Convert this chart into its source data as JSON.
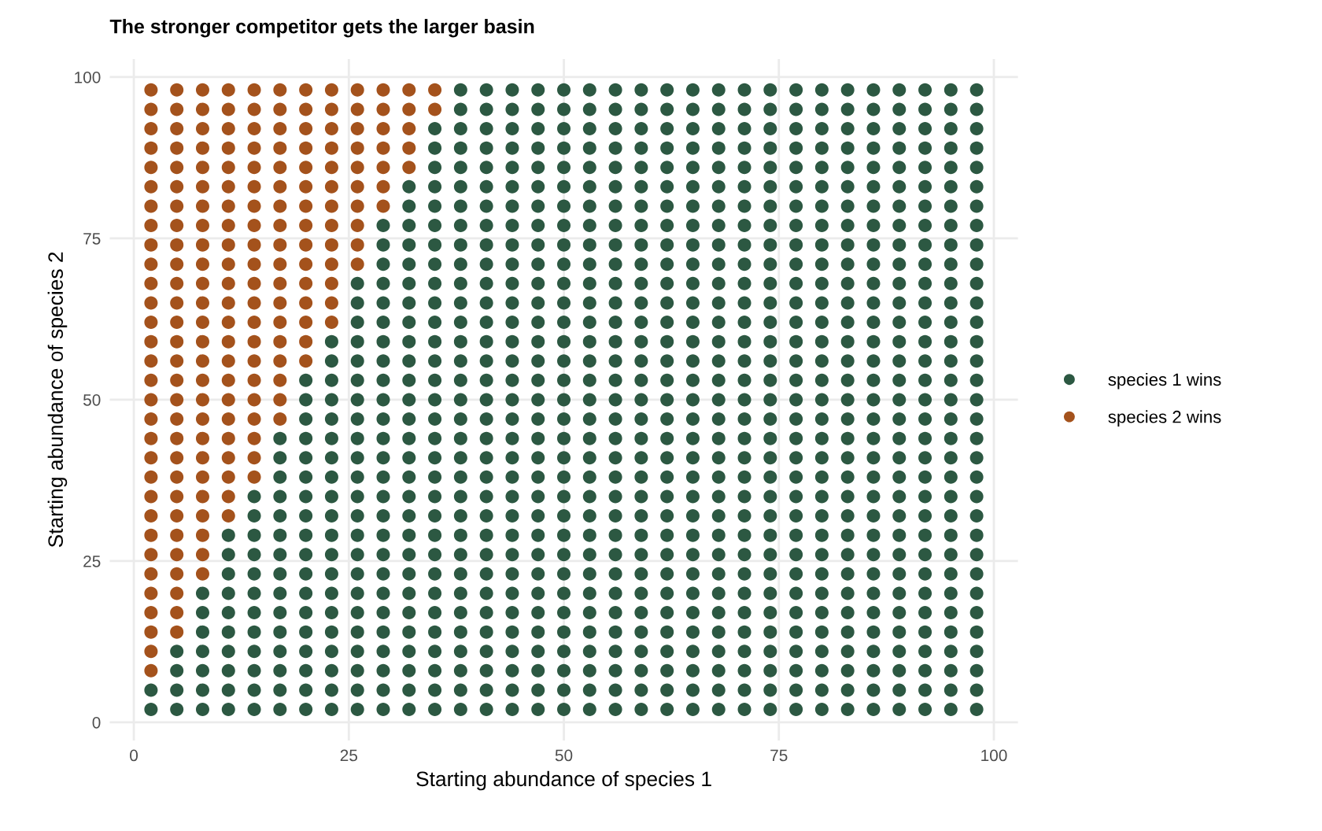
{
  "chart_data": {
    "type": "scatter",
    "title": "The stronger competitor gets the larger basin",
    "xlabel": "Starting abundance of species 1",
    "ylabel": "Starting abundance of species 2",
    "xlim": [
      -2.8,
      102.8
    ],
    "xticks": [
      0,
      25,
      50,
      75,
      100
    ],
    "ylim": [
      -2.8,
      102.8
    ],
    "yticks": [
      0,
      25,
      50,
      75,
      100
    ],
    "grid": true,
    "legend": "right",
    "marker": "circle",
    "series": [
      {
        "name": "species 1 wins",
        "color": "#2c5842",
        "x": [
          2,
          2,
          5,
          5,
          5,
          5,
          8,
          8,
          8,
          8,
          8,
          8,
          8,
          11,
          11,
          11,
          11,
          11,
          11,
          11,
          11,
          11,
          11,
          14,
          14,
          14,
          14,
          14,
          14,
          14,
          14,
          14,
          14,
          14,
          14,
          17,
          17,
          17,
          17,
          17,
          17,
          17,
          17,
          17,
          17,
          17,
          17,
          17,
          17,
          17,
          20,
          20,
          20,
          20,
          20,
          20,
          20,
          20,
          20,
          20,
          20,
          20,
          20,
          20,
          20,
          20,
          20,
          20,
          23,
          23,
          23,
          23,
          23,
          23,
          23,
          23,
          23,
          23,
          23,
          23,
          23,
          23,
          23,
          23,
          23,
          23,
          23,
          23,
          26,
          26,
          26,
          26,
          26,
          26,
          26,
          26,
          26,
          26,
          26,
          26,
          26,
          26,
          26,
          26,
          26,
          26,
          26,
          26,
          26,
          26,
          26,
          29,
          29,
          29,
          29,
          29,
          29,
          29,
          29,
          29,
          29,
          29,
          29,
          29,
          29,
          29,
          29,
          29,
          29,
          29,
          29,
          29,
          29,
          29,
          29,
          29,
          29,
          32,
          32,
          32,
          32,
          32,
          32,
          32,
          32,
          32,
          32,
          32,
          32,
          32,
          32,
          32,
          32,
          32,
          32,
          32,
          32,
          32,
          32,
          32,
          32,
          32,
          32,
          32,
          32,
          35,
          35,
          35,
          35,
          35,
          35,
          35,
          35,
          35,
          35,
          35,
          35,
          35,
          35,
          35,
          35,
          35,
          35,
          35,
          35,
          35,
          35,
          35,
          35,
          35,
          35,
          35,
          35,
          35,
          35,
          35,
          38,
          38,
          38,
          38,
          38,
          38,
          38,
          38,
          38,
          38,
          38,
          38,
          38,
          38,
          38,
          38,
          38,
          38,
          38,
          38,
          38,
          38,
          38,
          38,
          38,
          38,
          38,
          38,
          38,
          38,
          38,
          38,
          38,
          41,
          41,
          41,
          41,
          41,
          41,
          41,
          41,
          41,
          41,
          41,
          41,
          41,
          41,
          41,
          41,
          41,
          41,
          41,
          41,
          41,
          41,
          41,
          41,
          41,
          41,
          41,
          41,
          41,
          41,
          41,
          41,
          41,
          44,
          44,
          44,
          44,
          44,
          44,
          44,
          44,
          44,
          44,
          44,
          44,
          44,
          44,
          44,
          44,
          44,
          44,
          44,
          44,
          44,
          44,
          44,
          44,
          44,
          44,
          44,
          44,
          44,
          44,
          44,
          44,
          44,
          47,
          47,
          47,
          47,
          47,
          47,
          47,
          47,
          47,
          47,
          47,
          47,
          47,
          47,
          47,
          47,
          47,
          47,
          47,
          47,
          47,
          47,
          47,
          47,
          47,
          47,
          47,
          47,
          47,
          47,
          47,
          47,
          47,
          50,
          50,
          50,
          50,
          50,
          50,
          50,
          50,
          50,
          50,
          50,
          50,
          50,
          50,
          50,
          50,
          50,
          50,
          50,
          50,
          50,
          50,
          50,
          50,
          50,
          50,
          50,
          50,
          50,
          50,
          50,
          50,
          50,
          53,
          53,
          53,
          53,
          53,
          53,
          53,
          53,
          53,
          53,
          53,
          53,
          53,
          53,
          53,
          53,
          53,
          53,
          53,
          53,
          53,
          53,
          53,
          53,
          53,
          53,
          53,
          53,
          53,
          53,
          53,
          53,
          53,
          56,
          56,
          56,
          56,
          56,
          56,
          56,
          56,
          56,
          56,
          56,
          56,
          56,
          56,
          56,
          56,
          56,
          56,
          56,
          56,
          56,
          56,
          56,
          56,
          56,
          56,
          56,
          56,
          56,
          56,
          56,
          56,
          56,
          59,
          59,
          59,
          59,
          59,
          59,
          59,
          59,
          59,
          59,
          59,
          59,
          59,
          59,
          59,
          59,
          59,
          59,
          59,
          59,
          59,
          59,
          59,
          59,
          59,
          59,
          59,
          59,
          59,
          59,
          59,
          59,
          59,
          62,
          62,
          62,
          62,
          62,
          62,
          62,
          62,
          62,
          62,
          62,
          62,
          62,
          62,
          62,
          62,
          62,
          62,
          62,
          62,
          62,
          62,
          62,
          62,
          62,
          62,
          62,
          62,
          62,
          62,
          62,
          62,
          62,
          65,
          65,
          65,
          65,
          65,
          65,
          65,
          65,
          65,
          65,
          65,
          65,
          65,
          65,
          65,
          65,
          65,
          65,
          65,
          65,
          65,
          65,
          65,
          65,
          65,
          65,
          65,
          65,
          65,
          65,
          65,
          65,
          65,
          68,
          68,
          68,
          68,
          68,
          68,
          68,
          68,
          68,
          68,
          68,
          68,
          68,
          68,
          68,
          68,
          68,
          68,
          68,
          68,
          68,
          68,
          68,
          68,
          68,
          68,
          68,
          68,
          68,
          68,
          68,
          68,
          68,
          71,
          71,
          71,
          71,
          71,
          71,
          71,
          71,
          71,
          71,
          71,
          71,
          71,
          71,
          71,
          71,
          71,
          71,
          71,
          71,
          71,
          71,
          71,
          71,
          71,
          71,
          71,
          71,
          71,
          71,
          71,
          71,
          71,
          74,
          74,
          74,
          74,
          74,
          74,
          74,
          74,
          74,
          74,
          74,
          74,
          74,
          74,
          74,
          74,
          74,
          74,
          74,
          74,
          74,
          74,
          74,
          74,
          74,
          74,
          74,
          74,
          74,
          74,
          74,
          74,
          74,
          77,
          77,
          77,
          77,
          77,
          77,
          77,
          77,
          77,
          77,
          77,
          77,
          77,
          77,
          77,
          77,
          77,
          77,
          77,
          77,
          77,
          77,
          77,
          77,
          77,
          77,
          77,
          77,
          77,
          77,
          77,
          77,
          77,
          80,
          80,
          80,
          80,
          80,
          80,
          80,
          80,
          80,
          80,
          80,
          80,
          80,
          80,
          80,
          80,
          80,
          80,
          80,
          80,
          80,
          80,
          80,
          80,
          80,
          80,
          80,
          80,
          80,
          80,
          80,
          80,
          80,
          83,
          83,
          83,
          83,
          83,
          83,
          83,
          83,
          83,
          83,
          83,
          83,
          83,
          83,
          83,
          83,
          83,
          83,
          83,
          83,
          83,
          83,
          83,
          83,
          83,
          83,
          83,
          83,
          83,
          83,
          83,
          83,
          83,
          86,
          86,
          86,
          86,
          86,
          86,
          86,
          86,
          86,
          86,
          86,
          86,
          86,
          86,
          86,
          86,
          86,
          86,
          86,
          86,
          86,
          86,
          86,
          86,
          86,
          86,
          86,
          86,
          86,
          86,
          86,
          86,
          86,
          89,
          89,
          89,
          89,
          89,
          89,
          89,
          89,
          89,
          89,
          89,
          89,
          89,
          89,
          89,
          89,
          89,
          89,
          89,
          89,
          89,
          89,
          89,
          89,
          89,
          89,
          89,
          89,
          89,
          89,
          89,
          89,
          89,
          92,
          92,
          92,
          92,
          92,
          92,
          92,
          92,
          92,
          92,
          92,
          92,
          92,
          92,
          92,
          92,
          92,
          92,
          92,
          92,
          92,
          92,
          92,
          92,
          92,
          92,
          92,
          92,
          92,
          92,
          92,
          92,
          92,
          95,
          95,
          95,
          95,
          95,
          95,
          95,
          95,
          95,
          95,
          95,
          95,
          95,
          95,
          95,
          95,
          95,
          95,
          95,
          95,
          95,
          95,
          95,
          95,
          95,
          95,
          95,
          95,
          95,
          95,
          95,
          95,
          95,
          98,
          98,
          98,
          98,
          98,
          98,
          98,
          98,
          98,
          98,
          98,
          98,
          98,
          98,
          98,
          98,
          98,
          98,
          98,
          98,
          98,
          98,
          98,
          98,
          98,
          98,
          98,
          98,
          98,
          98,
          98,
          98,
          98
        ],
        "values": [
          2,
          5,
          2,
          5,
          8,
          11,
          2,
          5,
          8,
          11,
          14,
          17,
          20,
          2,
          5,
          8,
          11,
          14,
          17,
          20,
          23,
          26,
          29,
          2,
          5,
          8,
          11,
          14,
          17,
          20,
          23,
          26,
          29,
          32,
          35,
          2,
          5,
          8,
          11,
          14,
          17,
          20,
          23,
          26,
          29,
          32,
          35,
          38,
          41,
          44,
          2,
          5,
          8,
          11,
          14,
          17,
          20,
          23,
          26,
          29,
          32,
          35,
          38,
          41,
          44,
          47,
          50,
          53,
          2,
          5,
          8,
          11,
          14,
          17,
          20,
          23,
          26,
          29,
          32,
          35,
          38,
          41,
          44,
          47,
          50,
          53,
          56,
          59,
          2,
          5,
          8,
          11,
          14,
          17,
          20,
          23,
          26,
          29,
          32,
          35,
          38,
          41,
          44,
          47,
          50,
          53,
          56,
          59,
          62,
          65,
          68,
          2,
          5,
          8,
          11,
          14,
          17,
          20,
          23,
          26,
          29,
          32,
          35,
          38,
          41,
          44,
          47,
          50,
          53,
          56,
          59,
          62,
          65,
          68,
          71,
          74,
          77,
          2,
          5,
          8,
          11,
          14,
          17,
          20,
          23,
          26,
          29,
          32,
          35,
          38,
          41,
          44,
          47,
          50,
          53,
          56,
          59,
          62,
          65,
          68,
          71,
          74,
          77,
          80,
          83,
          2,
          5,
          8,
          11,
          14,
          17,
          20,
          23,
          26,
          29,
          32,
          35,
          38,
          41,
          44,
          47,
          50,
          53,
          56,
          59,
          62,
          65,
          68,
          71,
          74,
          77,
          80,
          83,
          86,
          89,
          92,
          2,
          5,
          8,
          11,
          14,
          17,
          20,
          23,
          26,
          29,
          32,
          35,
          38,
          41,
          44,
          47,
          50,
          53,
          56,
          59,
          62,
          65,
          68,
          71,
          74,
          77,
          80,
          83,
          86,
          89,
          92,
          95,
          98,
          2,
          5,
          8,
          11,
          14,
          17,
          20,
          23,
          26,
          29,
          32,
          35,
          38,
          41,
          44,
          47,
          50,
          53,
          56,
          59,
          62,
          65,
          68,
          71,
          74,
          77,
          80,
          83,
          86,
          89,
          92,
          95,
          98,
          2,
          5,
          8,
          11,
          14,
          17,
          20,
          23,
          26,
          29,
          32,
          35,
          38,
          41,
          44,
          47,
          50,
          53,
          56,
          59,
          62,
          65,
          68,
          71,
          74,
          77,
          80,
          83,
          86,
          89,
          92,
          95,
          98,
          2,
          5,
          8,
          11,
          14,
          17,
          20,
          23,
          26,
          29,
          32,
          35,
          38,
          41,
          44,
          47,
          50,
          53,
          56,
          59,
          62,
          65,
          68,
          71,
          74,
          77,
          80,
          83,
          86,
          89,
          92,
          95,
          98,
          2,
          5,
          8,
          11,
          14,
          17,
          20,
          23,
          26,
          29,
          32,
          35,
          38,
          41,
          44,
          47,
          50,
          53,
          56,
          59,
          62,
          65,
          68,
          71,
          74,
          77,
          80,
          83,
          86,
          89,
          92,
          95,
          98,
          2,
          5,
          8,
          11,
          14,
          17,
          20,
          23,
          26,
          29,
          32,
          35,
          38,
          41,
          44,
          47,
          50,
          53,
          56,
          59,
          62,
          65,
          68,
          71,
          74,
          77,
          80,
          83,
          86,
          89,
          92,
          95,
          98,
          2,
          5,
          8,
          11,
          14,
          17,
          20,
          23,
          26,
          29,
          32,
          35,
          38,
          41,
          44,
          47,
          50,
          53,
          56,
          59,
          62,
          65,
          68,
          71,
          74,
          77,
          80,
          83,
          86,
          89,
          92,
          95,
          98,
          2,
          5,
          8,
          11,
          14,
          17,
          20,
          23,
          26,
          29,
          32,
          35,
          38,
          41,
          44,
          47,
          50,
          53,
          56,
          59,
          62,
          65,
          68,
          71,
          74,
          77,
          80,
          83,
          86,
          89,
          92,
          95,
          98,
          2,
          5,
          8,
          11,
          14,
          17,
          20,
          23,
          26,
          29,
          32,
          35,
          38,
          41,
          44,
          47,
          50,
          53,
          56,
          59,
          62,
          65,
          68,
          71,
          74,
          77,
          80,
          83,
          86,
          89,
          92,
          95,
          98,
          2,
          5,
          8,
          11,
          14,
          17,
          20,
          23,
          26,
          29,
          32,
          35,
          38,
          41,
          44,
          47,
          50,
          53,
          56,
          59,
          62,
          65,
          68,
          71,
          74,
          77,
          80,
          83,
          86,
          89,
          92,
          95,
          98,
          2,
          5,
          8,
          11,
          14,
          17,
          20,
          23,
          26,
          29,
          32,
          35,
          38,
          41,
          44,
          47,
          50,
          53,
          56,
          59,
          62,
          65,
          68,
          71,
          74,
          77,
          80,
          83,
          86,
          89,
          92,
          95,
          98,
          2,
          5,
          8,
          11,
          14,
          17,
          20,
          23,
          26,
          29,
          32,
          35,
          38,
          41,
          44,
          47,
          50,
          53,
          56,
          59,
          62,
          65,
          68,
          71,
          74,
          77,
          80,
          83,
          86,
          89,
          92,
          95,
          98,
          2,
          5,
          8,
          11,
          14,
          17,
          20,
          23,
          26,
          29,
          32,
          35,
          38,
          41,
          44,
          47,
          50,
          53,
          56,
          59,
          62,
          65,
          68,
          71,
          74,
          77,
          80,
          83,
          86,
          89,
          92,
          95,
          98,
          2,
          5,
          8,
          11,
          14,
          17,
          20,
          23,
          26,
          29,
          32,
          35,
          38,
          41,
          44,
          47,
          50,
          53,
          56,
          59,
          62,
          65,
          68,
          71,
          74,
          77,
          80,
          83,
          86,
          89,
          92,
          95,
          98,
          2,
          5,
          8,
          11,
          14,
          17,
          20,
          23,
          26,
          29,
          32,
          35,
          38,
          41,
          44,
          47,
          50,
          53,
          56,
          59,
          62,
          65,
          68,
          71,
          74,
          77,
          80,
          83,
          86,
          89,
          92,
          95,
          98,
          2,
          5,
          8,
          11,
          14,
          17,
          20,
          23,
          26,
          29,
          32,
          35,
          38,
          41,
          44,
          47,
          50,
          53,
          56,
          59,
          62,
          65,
          68,
          71,
          74,
          77,
          80,
          83,
          86,
          89,
          92,
          95,
          98,
          2,
          5,
          8,
          11,
          14,
          17,
          20,
          23,
          26,
          29,
          32,
          35,
          38,
          41,
          44,
          47,
          50,
          53,
          56,
          59,
          62,
          65,
          68,
          71,
          74,
          77,
          80,
          83,
          86,
          89,
          92,
          95,
          98,
          2,
          5,
          8,
          11,
          14,
          17,
          20,
          23,
          26,
          29,
          32,
          35,
          38,
          41,
          44,
          47,
          50,
          53,
          56,
          59,
          62,
          65,
          68,
          71,
          74,
          77,
          80,
          83,
          86,
          89,
          92,
          95,
          98,
          2,
          5,
          8,
          11,
          14,
          17,
          20,
          23,
          26,
          29,
          32,
          35,
          38,
          41,
          44,
          47,
          50,
          53,
          56,
          59,
          62,
          65,
          68,
          71,
          74,
          77,
          80,
          83,
          86,
          89,
          92,
          95,
          98,
          2,
          5,
          8,
          11,
          14,
          17,
          20,
          23,
          26,
          29,
          32,
          35,
          38,
          41,
          44,
          47,
          50,
          53,
          56,
          59,
          62,
          65,
          68,
          71,
          74,
          77,
          80,
          83,
          86,
          89,
          92,
          95,
          98,
          2,
          5,
          8,
          11,
          14,
          17,
          20,
          23,
          26,
          29,
          32,
          35,
          38,
          41,
          44,
          47,
          50,
          53,
          56,
          59,
          62,
          65,
          68,
          71,
          74,
          77,
          80,
          83,
          86,
          89,
          92,
          95,
          98
        ]
      },
      {
        "name": "species 2 wins",
        "color": "#a4521c",
        "x": [
          2,
          2,
          2,
          2,
          2,
          2,
          2,
          2,
          2,
          2,
          2,
          2,
          2,
          2,
          2,
          2,
          2,
          2,
          2,
          2,
          2,
          2,
          2,
          2,
          2,
          2,
          2,
          2,
          2,
          2,
          2,
          5,
          5,
          5,
          5,
          5,
          5,
          5,
          5,
          5,
          5,
          5,
          5,
          5,
          5,
          5,
          5,
          5,
          5,
          5,
          5,
          5,
          5,
          5,
          5,
          5,
          5,
          5,
          5,
          5,
          8,
          8,
          8,
          8,
          8,
          8,
          8,
          8,
          8,
          8,
          8,
          8,
          8,
          8,
          8,
          8,
          8,
          8,
          8,
          8,
          8,
          8,
          8,
          8,
          8,
          8,
          11,
          11,
          11,
          11,
          11,
          11,
          11,
          11,
          11,
          11,
          11,
          11,
          11,
          11,
          11,
          11,
          11,
          11,
          11,
          11,
          11,
          11,
          11,
          14,
          14,
          14,
          14,
          14,
          14,
          14,
          14,
          14,
          14,
          14,
          14,
          14,
          14,
          14,
          14,
          14,
          14,
          14,
          14,
          14,
          17,
          17,
          17,
          17,
          17,
          17,
          17,
          17,
          17,
          17,
          17,
          17,
          17,
          17,
          17,
          17,
          17,
          17,
          20,
          20,
          20,
          20,
          20,
          20,
          20,
          20,
          20,
          20,
          20,
          20,
          20,
          20,
          20,
          23,
          23,
          23,
          23,
          23,
          23,
          23,
          23,
          23,
          23,
          23,
          23,
          23,
          26,
          26,
          26,
          26,
          26,
          26,
          26,
          26,
          26,
          26,
          29,
          29,
          29,
          29,
          29,
          29,
          29,
          32,
          32,
          32,
          32,
          32,
          35,
          35
        ],
        "values": [
          8,
          11,
          14,
          17,
          20,
          23,
          26,
          29,
          32,
          35,
          38,
          41,
          44,
          47,
          50,
          53,
          56,
          59,
          62,
          65,
          68,
          71,
          74,
          77,
          80,
          83,
          86,
          89,
          92,
          95,
          98,
          14,
          17,
          20,
          23,
          26,
          29,
          32,
          35,
          38,
          41,
          44,
          47,
          50,
          53,
          56,
          59,
          62,
          65,
          68,
          71,
          74,
          77,
          80,
          83,
          86,
          89,
          92,
          95,
          98,
          23,
          26,
          29,
          32,
          35,
          38,
          41,
          44,
          47,
          50,
          53,
          56,
          59,
          62,
          65,
          68,
          71,
          74,
          77,
          80,
          83,
          86,
          89,
          92,
          95,
          98,
          32,
          35,
          38,
          41,
          44,
          47,
          50,
          53,
          56,
          59,
          62,
          65,
          68,
          71,
          74,
          77,
          80,
          83,
          86,
          89,
          92,
          95,
          98,
          38,
          41,
          44,
          47,
          50,
          53,
          56,
          59,
          62,
          65,
          68,
          71,
          74,
          77,
          80,
          83,
          86,
          89,
          92,
          95,
          98,
          47,
          50,
          53,
          56,
          59,
          62,
          65,
          68,
          71,
          74,
          77,
          80,
          83,
          86,
          89,
          92,
          95,
          98,
          56,
          59,
          62,
          65,
          68,
          71,
          74,
          77,
          80,
          83,
          86,
          89,
          92,
          95,
          98,
          62,
          65,
          68,
          71,
          74,
          77,
          80,
          83,
          86,
          89,
          92,
          95,
          98,
          71,
          74,
          77,
          80,
          83,
          86,
          89,
          92,
          95,
          98,
          80,
          83,
          86,
          89,
          92,
          95,
          98,
          86,
          89,
          92,
          95,
          98,
          95,
          98
        ]
      }
    ]
  }
}
